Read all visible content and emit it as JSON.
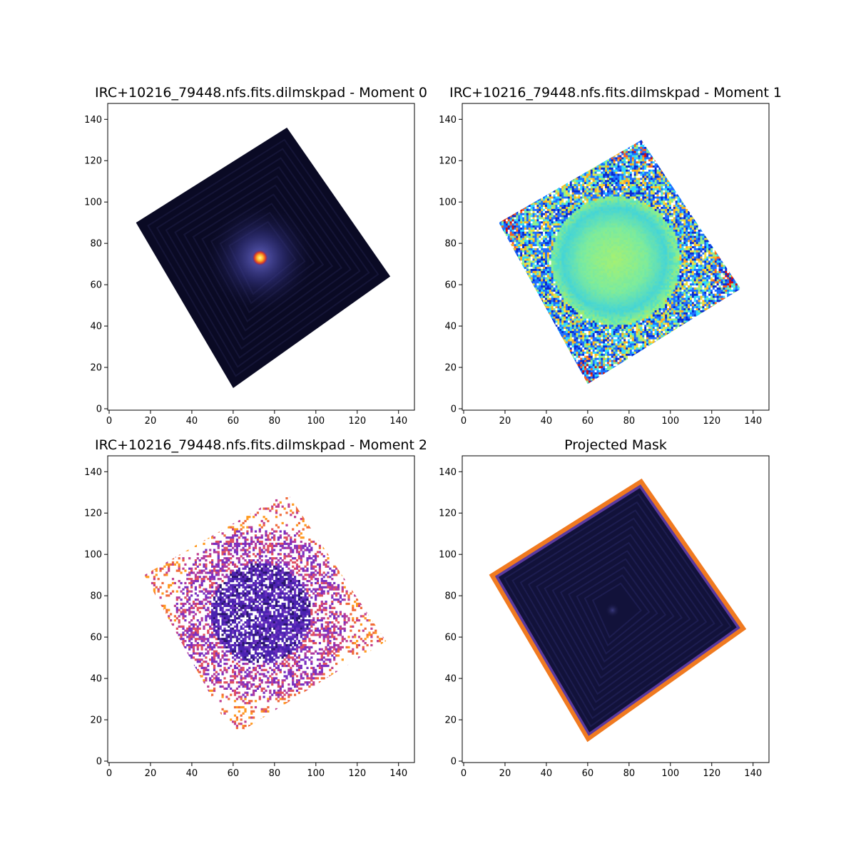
{
  "chart_data": [
    {
      "type": "heatmap",
      "title": "IRC+10216_79448.nfs.fits.dilmskpad - Moment 0",
      "colormap": "inferno-like",
      "xlim": [
        0,
        147
      ],
      "ylim": [
        0,
        147
      ],
      "xticks": [
        "0",
        "20",
        "40",
        "60",
        "80",
        "100",
        "120",
        "140"
      ],
      "yticks": [
        "0",
        "20",
        "40",
        "60",
        "80",
        "100",
        "120",
        "140"
      ],
      "footprint_corners": [
        [
          13,
          90
        ],
        [
          86,
          136
        ],
        [
          136,
          64
        ],
        [
          60,
          10
        ]
      ],
      "peak": {
        "x": 73,
        "y": 73
      },
      "colors": {
        "background": "#0a0a24",
        "halo": "#3a3a90",
        "peak": "#ffd040"
      }
    },
    {
      "type": "heatmap",
      "title": "IRC+10216_79448.nfs.fits.dilmskpad - Moment 1",
      "colormap": "jet-like",
      "xlim": [
        0,
        147
      ],
      "ylim": [
        0,
        147
      ],
      "xticks": [
        "0",
        "20",
        "40",
        "60",
        "80",
        "100",
        "120",
        "140"
      ],
      "yticks": [
        "0",
        "20",
        "40",
        "60",
        "80",
        "100",
        "120",
        "140"
      ],
      "footprint_corners": [
        [
          17,
          90
        ],
        [
          86,
          130
        ],
        [
          134,
          58
        ],
        [
          60,
          12
        ]
      ],
      "colors": {
        "center": "#8ef08a",
        "mid": "#1e6fff",
        "edge_warm": "#ff6020"
      }
    },
    {
      "type": "heatmap",
      "title": "IRC+10216_79448.nfs.fits.dilmskpad - Moment 2",
      "colormap": "plasma-like",
      "xlim": [
        0,
        147
      ],
      "ylim": [
        0,
        147
      ],
      "xticks": [
        "0",
        "20",
        "40",
        "60",
        "80",
        "100",
        "120",
        "140"
      ],
      "yticks": [
        "0",
        "20",
        "40",
        "60",
        "80",
        "100",
        "120",
        "140"
      ],
      "footprint_corners": [
        [
          17,
          90
        ],
        [
          86,
          130
        ],
        [
          134,
          58
        ],
        [
          60,
          12
        ]
      ],
      "colors": {
        "center": "#3a1a9a",
        "mid": "#9a30c0",
        "edge": "#f06a2a"
      }
    },
    {
      "type": "heatmap",
      "title": "Projected Mask",
      "colormap": "inferno-like",
      "xlim": [
        0,
        147
      ],
      "ylim": [
        0,
        147
      ],
      "xticks": [
        "0",
        "20",
        "40",
        "60",
        "80",
        "100",
        "120",
        "140"
      ],
      "yticks": [
        "0",
        "20",
        "40",
        "60",
        "80",
        "100",
        "120",
        "140"
      ],
      "footprint_corners": [
        [
          13,
          90
        ],
        [
          86,
          136
        ],
        [
          136,
          64
        ],
        [
          60,
          10
        ]
      ],
      "colors": {
        "fill": "#12123a",
        "rim": "#f07a20"
      }
    }
  ]
}
